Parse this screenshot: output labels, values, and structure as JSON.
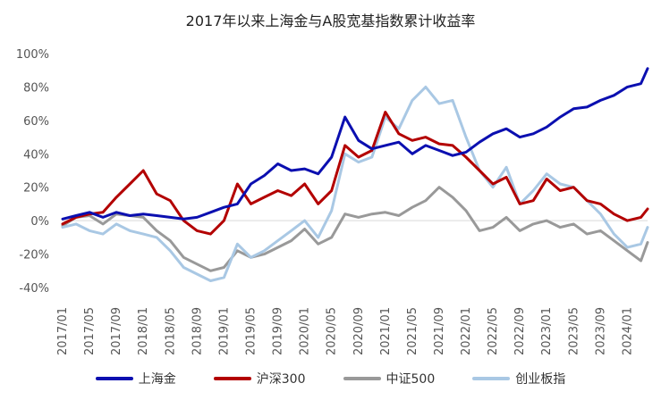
{
  "chart_data": {
    "type": "line",
    "title": "2017年以来上海金与A股宽基指数累计收益率",
    "xlabel": "",
    "ylabel": "",
    "ylim": [
      -40,
      100
    ],
    "yticks": [
      "100%",
      "80%",
      "60%",
      "40%",
      "20%",
      "0%",
      "-20%",
      "-40%"
    ],
    "ytick_values": [
      100,
      80,
      60,
      40,
      20,
      0,
      -20,
      -40
    ],
    "xticks": [
      "2017/01",
      "2017/05",
      "2017/09",
      "2018/01",
      "2018/05",
      "2018/09",
      "2019/01",
      "2019/05",
      "2019/09",
      "2020/01",
      "2020/05",
      "2020/09",
      "2021/01",
      "2021/05",
      "2021/09",
      "2022/01",
      "2022/05",
      "2022/09",
      "2023/01",
      "2023/05",
      "2023/09",
      "2024/01"
    ],
    "x": [
      "2017/01",
      "2017/03",
      "2017/05",
      "2017/07",
      "2017/09",
      "2017/11",
      "2018/01",
      "2018/03",
      "2018/05",
      "2018/07",
      "2018/09",
      "2018/11",
      "2019/01",
      "2019/03",
      "2019/05",
      "2019/07",
      "2019/09",
      "2019/11",
      "2020/01",
      "2020/03",
      "2020/05",
      "2020/07",
      "2020/09",
      "2020/11",
      "2021/01",
      "2021/03",
      "2021/05",
      "2021/07",
      "2021/09",
      "2021/11",
      "2022/01",
      "2022/03",
      "2022/05",
      "2022/07",
      "2022/09",
      "2022/11",
      "2023/01",
      "2023/03",
      "2023/05",
      "2023/07",
      "2023/09",
      "2023/11",
      "2024/01",
      "2024/03",
      "2024/04"
    ],
    "grid": false,
    "legend_position": "bottom",
    "series": [
      {
        "name": "上海金",
        "color": "#0b0fb0",
        "values": [
          1,
          3,
          5,
          2,
          5,
          3,
          4,
          3,
          2,
          1,
          2,
          5,
          8,
          10,
          22,
          27,
          34,
          30,
          31,
          28,
          38,
          62,
          48,
          43,
          45,
          47,
          40,
          45,
          42,
          39,
          41,
          47,
          52,
          55,
          50,
          52,
          56,
          62,
          67,
          68,
          72,
          75,
          80,
          82,
          91
        ]
      },
      {
        "name": "沪深300",
        "color": "#b30000",
        "values": [
          -2,
          2,
          4,
          5,
          14,
          22,
          30,
          16,
          12,
          0,
          -6,
          -8,
          0,
          22,
          10,
          14,
          18,
          15,
          22,
          10,
          18,
          45,
          38,
          42,
          65,
          52,
          48,
          50,
          46,
          45,
          38,
          30,
          22,
          26,
          10,
          12,
          25,
          18,
          20,
          12,
          10,
          4,
          0,
          2,
          7
        ]
      },
      {
        "name": "中证500",
        "color": "#999999",
        "values": [
          -3,
          2,
          3,
          -2,
          4,
          3,
          2,
          -6,
          -12,
          -22,
          -26,
          -30,
          -28,
          -18,
          -22,
          -20,
          -16,
          -12,
          -5,
          -14,
          -10,
          4,
          2,
          4,
          5,
          3,
          8,
          12,
          20,
          14,
          6,
          -6,
          -4,
          2,
          -6,
          -2,
          0,
          -4,
          -2,
          -8,
          -6,
          -12,
          -18,
          -24,
          -13
        ]
      },
      {
        "name": "创业板指",
        "color": "#a9c8e4",
        "values": [
          -4,
          -2,
          -6,
          -8,
          -2,
          -6,
          -8,
          -10,
          -18,
          -28,
          -32,
          -36,
          -34,
          -14,
          -22,
          -18,
          -12,
          -6,
          0,
          -10,
          6,
          40,
          35,
          38,
          62,
          55,
          72,
          80,
          70,
          72,
          50,
          30,
          20,
          32,
          10,
          18,
          28,
          22,
          20,
          12,
          4,
          -8,
          -16,
          -14,
          -4
        ]
      }
    ]
  }
}
